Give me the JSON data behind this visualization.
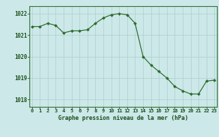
{
  "hours": [
    0,
    1,
    2,
    3,
    4,
    5,
    6,
    7,
    8,
    9,
    10,
    11,
    12,
    13,
    14,
    15,
    16,
    17,
    18,
    19,
    20,
    21,
    22,
    23
  ],
  "pressure": [
    1021.4,
    1021.4,
    1021.55,
    1021.45,
    1021.1,
    1021.2,
    1021.2,
    1021.25,
    1021.55,
    1021.8,
    1021.95,
    1022.0,
    1021.95,
    1021.55,
    1020.0,
    1019.6,
    1019.3,
    1019.0,
    1018.6,
    1018.4,
    1018.25,
    1018.25,
    1018.85,
    1018.9
  ],
  "line_color": "#2d6a2d",
  "marker": "D",
  "marker_size": 2.2,
  "bg_color": "#cce8e8",
  "grid_color": "#aacece",
  "title": "Graphe pression niveau de la mer (hPa)",
  "ylabel_values": [
    1018,
    1019,
    1020,
    1021,
    1022
  ],
  "xlim": [
    -0.3,
    23.3
  ],
  "ylim": [
    1017.65,
    1022.35
  ],
  "title_color": "#1a4d1a",
  "tick_color": "#1a4d1a",
  "spine_color": "#2d6a2d",
  "label_fontsize": 5.2,
  "ytick_fontsize": 5.5,
  "title_fontsize": 6.0
}
